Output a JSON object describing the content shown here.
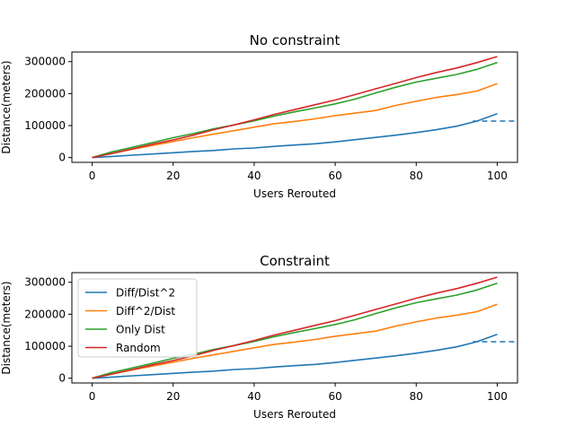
{
  "colors": {
    "blue": "#1f77b4",
    "orange": "#ff7f0e",
    "green": "#2ca02c",
    "red": "#d62728"
  },
  "chart_data": [
    {
      "type": "line",
      "title": "No constraint",
      "xlabel": "Users Rerouted",
      "ylabel": "Distance(meters)",
      "xlim": [
        -5,
        105
      ],
      "ylim": [
        -15000,
        330000
      ],
      "xticks": [
        0,
        20,
        40,
        60,
        80,
        100
      ],
      "yticks": [
        0,
        100000,
        200000,
        300000
      ],
      "x": [
        0,
        5,
        10,
        15,
        20,
        25,
        30,
        35,
        40,
        45,
        50,
        55,
        60,
        65,
        70,
        75,
        80,
        85,
        90,
        95,
        100
      ],
      "series": [
        {
          "name": "Diff/Dist^2",
          "color": "#1f77b4",
          "values": [
            0,
            3500,
            7500,
            11000,
            15000,
            19000,
            22000,
            27000,
            30000,
            35000,
            39000,
            43000,
            49000,
            56000,
            63000,
            70000,
            78000,
            87000,
            98000,
            114000,
            137000
          ]
        },
        {
          "name": "Diff^2/Dist",
          "color": "#ff7f0e",
          "values": [
            0,
            13000,
            26000,
            38000,
            50000,
            62000,
            73000,
            84000,
            95000,
            106000,
            113000,
            121000,
            131000,
            139000,
            147000,
            163000,
            176000,
            188000,
            197000,
            208000,
            231000
          ]
        },
        {
          "name": "Only Dist",
          "color": "#2ca02c",
          "values": [
            0,
            18000,
            32000,
            47000,
            62000,
            75000,
            90000,
            102000,
            115000,
            130000,
            143000,
            155000,
            168000,
            183000,
            202000,
            220000,
            236000,
            248000,
            260000,
            276000,
            297000
          ]
        },
        {
          "name": "Random",
          "color": "#d62728",
          "values": [
            0,
            13000,
            27000,
            42000,
            55000,
            70000,
            87000,
            102000,
            118000,
            135000,
            150000,
            165000,
            180000,
            197000,
            215000,
            232000,
            250000,
            266000,
            280000,
            297000,
            316000
          ]
        }
      ],
      "reference_line": {
        "y": 114000,
        "x_start": 94,
        "x_end": 105,
        "color": "#1f77b4",
        "style": "dashed"
      }
    },
    {
      "type": "line",
      "title": "Constraint",
      "xlabel": "Users Rerouted",
      "ylabel": "Distance(meters)",
      "xlim": [
        -5,
        105
      ],
      "ylim": [
        -15000,
        330000
      ],
      "xticks": [
        0,
        20,
        40,
        60,
        80,
        100
      ],
      "yticks": [
        0,
        100000,
        200000,
        300000
      ],
      "legend": "top-left",
      "x": [
        0,
        5,
        10,
        15,
        20,
        25,
        30,
        35,
        40,
        45,
        50,
        55,
        60,
        65,
        70,
        75,
        80,
        85,
        90,
        95,
        100
      ],
      "series": [
        {
          "name": "Diff/Dist^2",
          "color": "#1f77b4",
          "values": [
            0,
            3500,
            7500,
            11000,
            15000,
            19000,
            22000,
            27000,
            30000,
            35000,
            39000,
            43000,
            49000,
            56000,
            63000,
            70000,
            78000,
            87000,
            98000,
            114000,
            137000
          ]
        },
        {
          "name": "Diff^2/Dist",
          "color": "#ff7f0e",
          "values": [
            0,
            13000,
            26000,
            38000,
            50000,
            62000,
            73000,
            84000,
            95000,
            106000,
            113000,
            121000,
            131000,
            139000,
            147000,
            163000,
            176000,
            188000,
            197000,
            208000,
            231000
          ]
        },
        {
          "name": "Only Dist",
          "color": "#2ca02c",
          "values": [
            0,
            18000,
            32000,
            47000,
            62000,
            75000,
            90000,
            102000,
            115000,
            130000,
            143000,
            155000,
            168000,
            183000,
            202000,
            220000,
            236000,
            248000,
            260000,
            276000,
            297000
          ]
        },
        {
          "name": "Random",
          "color": "#d62728",
          "values": [
            0,
            13000,
            27000,
            42000,
            55000,
            70000,
            87000,
            102000,
            118000,
            135000,
            150000,
            165000,
            180000,
            197000,
            215000,
            232000,
            250000,
            266000,
            280000,
            297000,
            316000
          ]
        }
      ],
      "reference_line": {
        "y": 114000,
        "x_start": 94,
        "x_end": 105,
        "color": "#1f77b4",
        "style": "dashed"
      }
    }
  ]
}
